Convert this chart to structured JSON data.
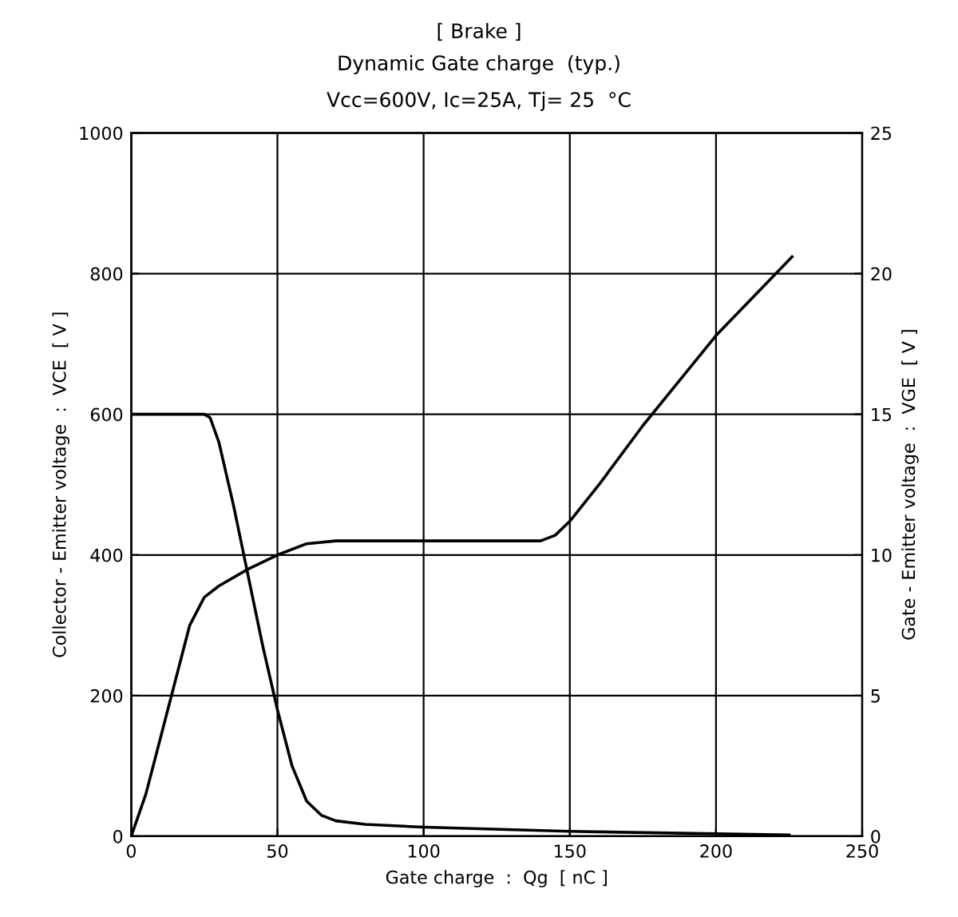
{
  "chart_data": {
    "type": "line",
    "title": "[ Brake ]",
    "subtitle": "Dynamic Gate charge  (typ.)",
    "annotations": [
      "Vcc=600V, Ic=25A, Tj= 25  °C"
    ],
    "xlabel": "Gate charge  :  Qg  [ nC ]",
    "ylabel": "Collector - Emitter voltage  :  VCE  [ V ]",
    "y2label": "Gate - Emitter voltage  :  VGE  [ V ]",
    "xlim": [
      0,
      250
    ],
    "xticks": [
      0,
      50,
      100,
      150,
      200,
      250
    ],
    "ylim": [
      0,
      1000
    ],
    "yticks": [
      0,
      200,
      400,
      600,
      800,
      1000
    ],
    "y2lim": [
      0,
      25
    ],
    "y2ticks": [
      0,
      5,
      10,
      15,
      20,
      25
    ],
    "grid": true,
    "legend": false,
    "line_style": "solid",
    "marker": "none",
    "series": [
      {
        "color": "#000000",
        "x": [
          0,
          25,
          27,
          30,
          35,
          40,
          45,
          50,
          55,
          60,
          65,
          70,
          80,
          100,
          150,
          225
        ],
        "values": [
          600,
          600,
          595,
          560,
          470,
          370,
          270,
          180,
          100,
          50,
          30,
          22,
          17,
          13,
          7,
          2
        ]
      },
      {
        "color": "#000000",
        "axis": "y2",
        "x": [
          0,
          5,
          10,
          15,
          20,
          25,
          30,
          40,
          50,
          60,
          70,
          100,
          140,
          145,
          150,
          160,
          175,
          200,
          226
        ],
        "values": [
          0,
          1.5,
          3.5,
          5.5,
          7.5,
          8.5,
          8.9,
          9.5,
          10,
          10.4,
          10.5,
          10.5,
          10.5,
          10.7,
          11.2,
          12.5,
          14.6,
          17.8,
          20.6
        ]
      }
    ]
  }
}
